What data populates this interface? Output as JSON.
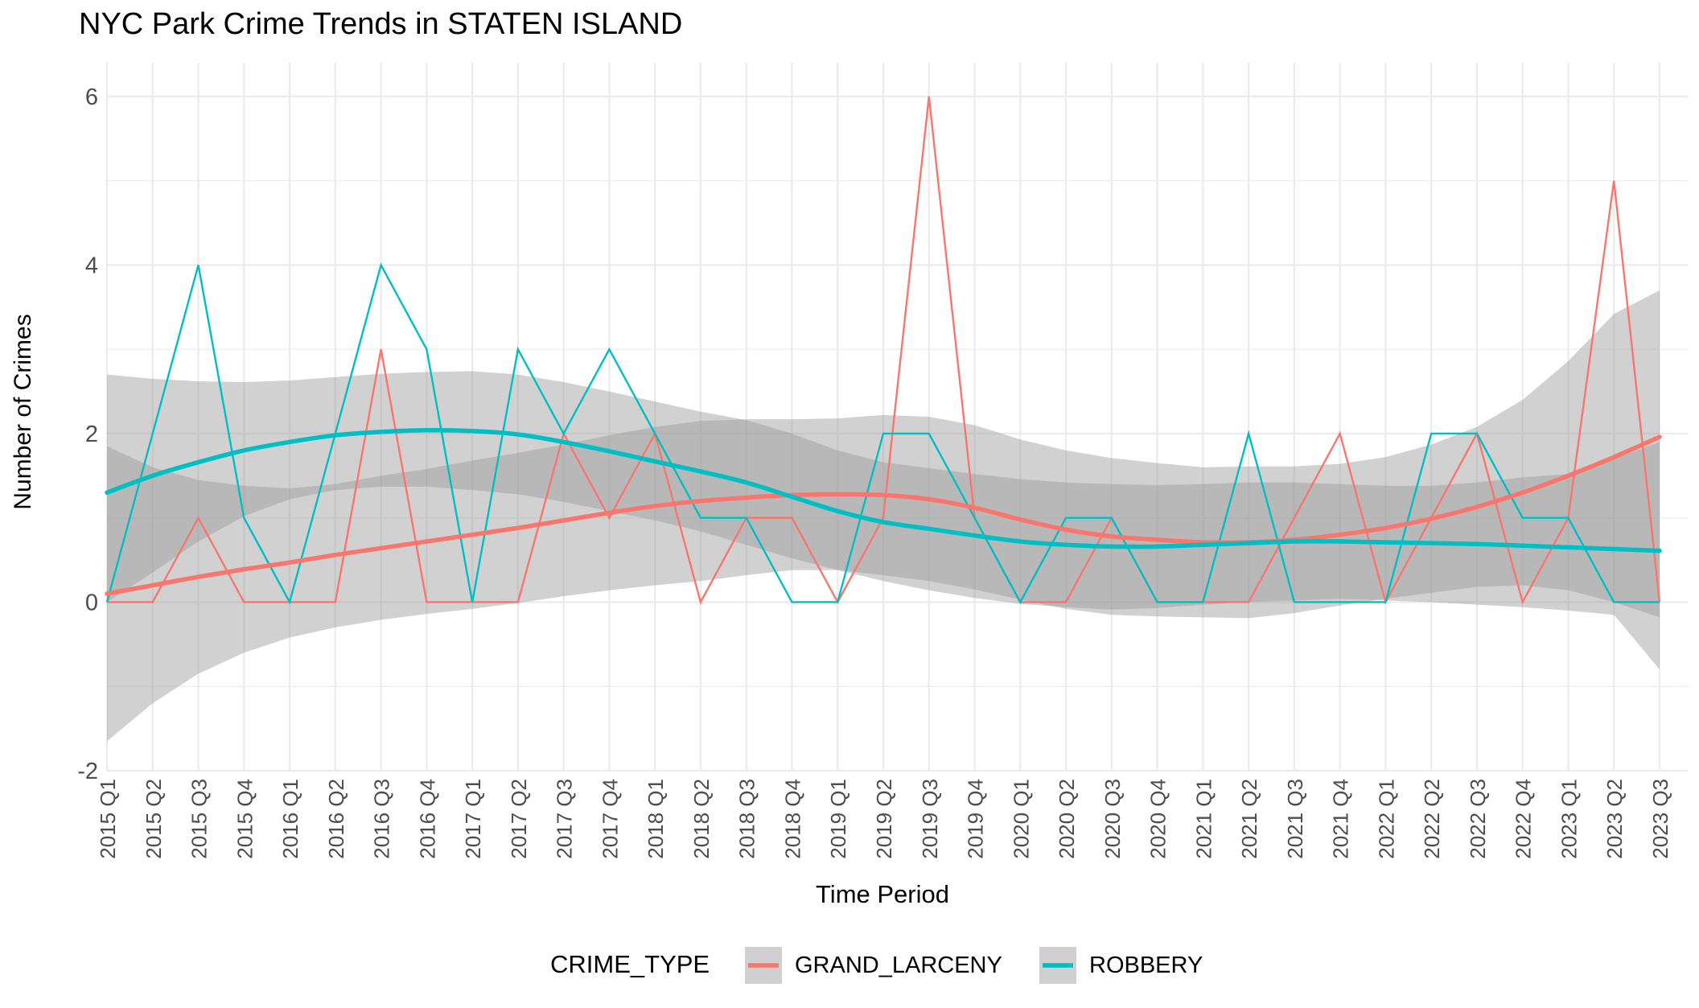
{
  "chart_data": {
    "type": "line",
    "title": "NYC Park Crime Trends in STATEN ISLAND",
    "xlabel": "Time Period",
    "ylabel": "Number of Crimes",
    "ylim": [
      -2,
      6.4
    ],
    "yticks": [
      -2,
      0,
      2,
      4,
      6
    ],
    "grid": true,
    "legend": {
      "title": "CRIME_TYPE",
      "placement": "bottom"
    },
    "categories": [
      "2015 Q1",
      "2015 Q2",
      "2015 Q3",
      "2015 Q4",
      "2016 Q1",
      "2016 Q2",
      "2016 Q3",
      "2016 Q4",
      "2017 Q1",
      "2017 Q2",
      "2017 Q3",
      "2017 Q4",
      "2018 Q1",
      "2018 Q2",
      "2018 Q3",
      "2018 Q4",
      "2019 Q1",
      "2019 Q2",
      "2019 Q3",
      "2019 Q4",
      "2020 Q1",
      "2020 Q2",
      "2020 Q3",
      "2020 Q4",
      "2021 Q1",
      "2021 Q2",
      "2021 Q3",
      "2021 Q4",
      "2022 Q1",
      "2022 Q2",
      "2022 Q3",
      "2022 Q4",
      "2023 Q1",
      "2023 Q2",
      "2023 Q3"
    ],
    "series": [
      {
        "name": "GRAND_LARCENY",
        "color": "#f8766d",
        "values": [
          0,
          0,
          1,
          0,
          0,
          0,
          3,
          0,
          0,
          0,
          2,
          1,
          2,
          0,
          1,
          1,
          0,
          1,
          6,
          1,
          0,
          0,
          1,
          0,
          0,
          0,
          1,
          2,
          0,
          1,
          2,
          0,
          1,
          5,
          0
        ],
        "smooth": [
          0.1,
          0.2,
          0.3,
          0.39,
          0.47,
          0.56,
          0.64,
          0.72,
          0.8,
          0.88,
          0.97,
          1.06,
          1.14,
          1.2,
          1.24,
          1.27,
          1.28,
          1.27,
          1.22,
          1.12,
          0.98,
          0.86,
          0.78,
          0.74,
          0.71,
          0.71,
          0.74,
          0.8,
          0.88,
          0.99,
          1.13,
          1.3,
          1.5,
          1.72,
          1.96
        ],
        "band_lower": [
          -1.65,
          -1.2,
          -0.85,
          -0.6,
          -0.42,
          -0.3,
          -0.21,
          -0.14,
          -0.08,
          -0.01,
          0.07,
          0.14,
          0.2,
          0.25,
          0.32,
          0.38,
          0.38,
          0.32,
          0.25,
          0.15,
          0.03,
          -0.08,
          -0.15,
          -0.17,
          -0.18,
          -0.19,
          -0.13,
          -0.04,
          0.04,
          0.11,
          0.18,
          0.2,
          0.14,
          0.0,
          -0.18
        ],
        "band_upper": [
          1.85,
          1.6,
          1.45,
          1.38,
          1.35,
          1.4,
          1.5,
          1.58,
          1.68,
          1.77,
          1.87,
          1.98,
          2.08,
          2.15,
          2.17,
          2.17,
          2.18,
          2.22,
          2.2,
          2.1,
          1.93,
          1.8,
          1.71,
          1.65,
          1.6,
          1.61,
          1.61,
          1.64,
          1.72,
          1.87,
          2.08,
          2.4,
          2.86,
          3.42,
          3.7
        ]
      },
      {
        "name": "ROBBERY",
        "color": "#00bfc4",
        "values": [
          0,
          2,
          4,
          1,
          0,
          2,
          4,
          3,
          0,
          3,
          2,
          3,
          2,
          1,
          1,
          0,
          0,
          2,
          2,
          1,
          0,
          1,
          1,
          0,
          0,
          2,
          0,
          0,
          0,
          2,
          2,
          1,
          1,
          0,
          0
        ],
        "smooth": [
          1.3,
          1.5,
          1.66,
          1.8,
          1.9,
          1.98,
          2.02,
          2.04,
          2.03,
          1.99,
          1.9,
          1.79,
          1.67,
          1.55,
          1.42,
          1.25,
          1.08,
          0.95,
          0.87,
          0.79,
          0.72,
          0.68,
          0.66,
          0.66,
          0.68,
          0.7,
          0.72,
          0.72,
          0.71,
          0.7,
          0.69,
          0.67,
          0.65,
          0.63,
          0.61
        ],
        "band_lower": [
          0.0,
          0.35,
          0.72,
          1.02,
          1.22,
          1.33,
          1.37,
          1.37,
          1.33,
          1.28,
          1.19,
          1.08,
          0.97,
          0.84,
          0.68,
          0.52,
          0.38,
          0.25,
          0.14,
          0.05,
          -0.02,
          -0.06,
          -0.09,
          -0.07,
          -0.03,
          0.0,
          0.02,
          0.04,
          0.02,
          0.0,
          -0.03,
          -0.06,
          -0.1,
          -0.15,
          -0.8
        ],
        "band_upper": [
          2.7,
          2.65,
          2.62,
          2.61,
          2.63,
          2.67,
          2.71,
          2.73,
          2.74,
          2.7,
          2.61,
          2.5,
          2.38,
          2.26,
          2.16,
          2.0,
          1.8,
          1.66,
          1.59,
          1.52,
          1.46,
          1.42,
          1.4,
          1.39,
          1.4,
          1.42,
          1.42,
          1.4,
          1.38,
          1.38,
          1.42,
          1.48,
          1.52,
          1.7,
          1.9
        ]
      }
    ]
  }
}
